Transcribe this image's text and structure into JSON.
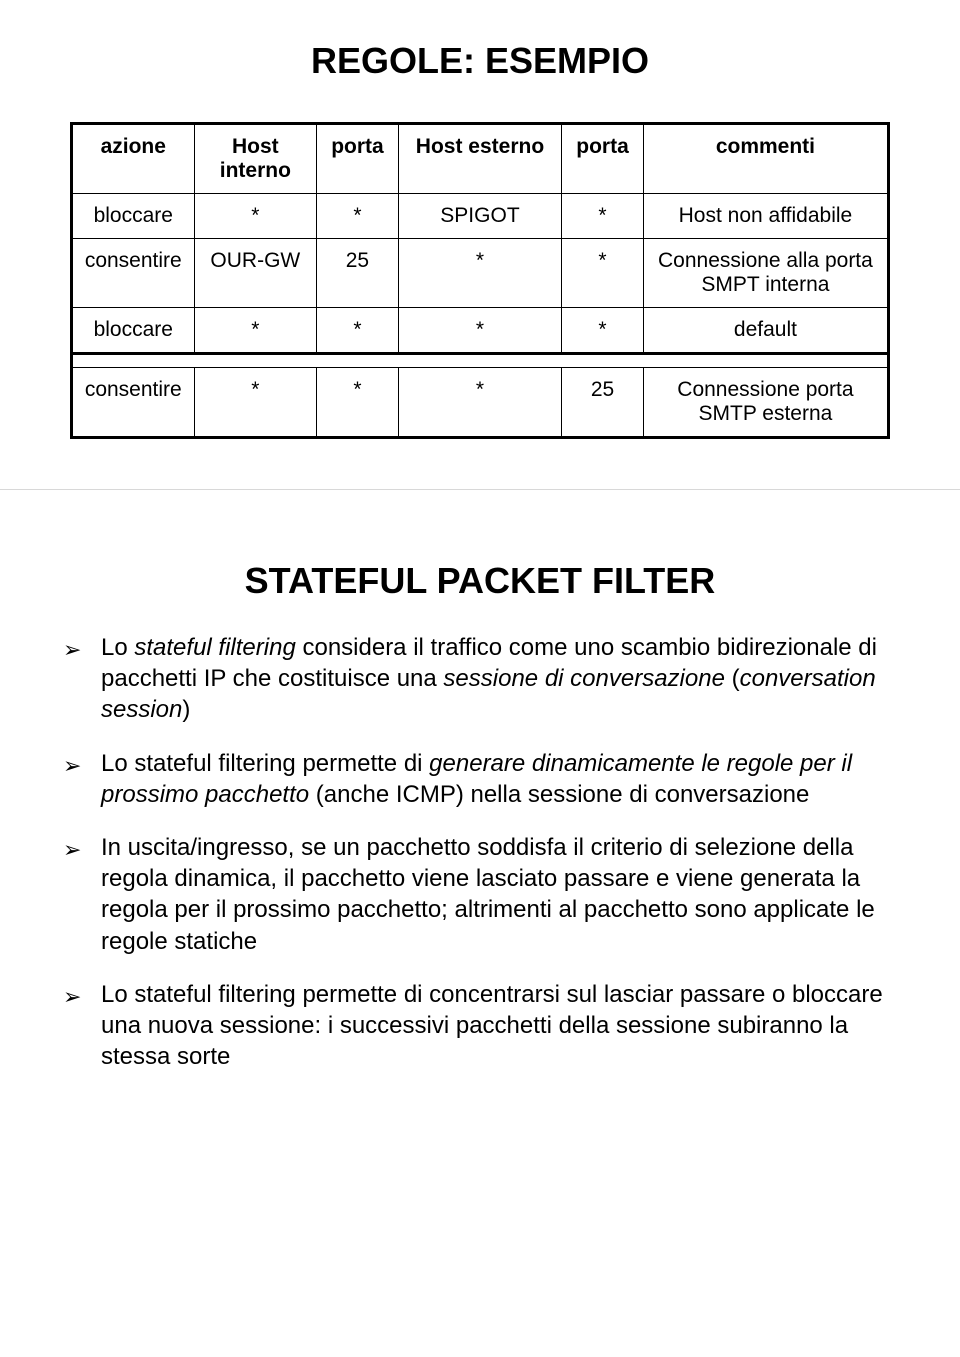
{
  "slide1": {
    "title": "REGOLE: ESEMPIO",
    "table": {
      "columns": [
        "azione",
        "Host interno",
        "porta",
        "Host esterno",
        "porta",
        "commenti"
      ],
      "col_widths": [
        "15%",
        "15%",
        "10%",
        "20%",
        "10%",
        "30%"
      ],
      "rows_top": [
        [
          "bloccare",
          "*",
          "*",
          "SPIGOT",
          "*",
          "Host non affidabile"
        ],
        [
          "consentire",
          "OUR-GW",
          "25",
          "*",
          "*",
          "Connessione alla porta SMPT interna"
        ],
        [
          "bloccare",
          "*",
          "*",
          "*",
          "*",
          "default"
        ]
      ],
      "rows_bottom": [
        [
          "consentire",
          "*",
          "*",
          "*",
          "25",
          "Connessione porta SMTP esterna"
        ]
      ],
      "border_color": "#000000",
      "font_size": 21
    }
  },
  "slide2": {
    "title": "STATEFUL PACKET FILTER",
    "bullets": [
      {
        "parts": [
          {
            "t": "Lo ",
            "i": false
          },
          {
            "t": "stateful filtering",
            "i": true
          },
          {
            "t": " considera il traffico come uno scambio bidirezionale di pacchetti IP che costituisce una ",
            "i": false
          },
          {
            "t": "sessione di conversazione",
            "i": true
          },
          {
            "t": " (",
            "i": false
          },
          {
            "t": "conversation session",
            "i": true
          },
          {
            "t": ")",
            "i": false
          }
        ]
      },
      {
        "parts": [
          {
            "t": "Lo stateful filtering permette di ",
            "i": false
          },
          {
            "t": "generare dinamicamente le regole per il prossimo pacchetto",
            "i": true
          },
          {
            "t": " (anche ICMP) nella sessione di conversazione",
            "i": false
          }
        ]
      },
      {
        "parts": [
          {
            "t": "In uscita/ingresso, se un pacchetto soddisfa il criterio di selezione della regola dinamica, il pacchetto viene lasciato passare e viene generata la regola per il prossimo pacchetto; altrimenti al pacchetto sono applicate le regole statiche",
            "i": false
          }
        ]
      },
      {
        "parts": [
          {
            "t": "Lo stateful filtering permette di concentrarsi sul lasciar passare o bloccare una nuova sessione: i successivi pacchetti della sessione subiranno la stessa sorte",
            "i": false
          }
        ]
      }
    ],
    "bullet_glyph": "➢",
    "font_size": 24
  }
}
